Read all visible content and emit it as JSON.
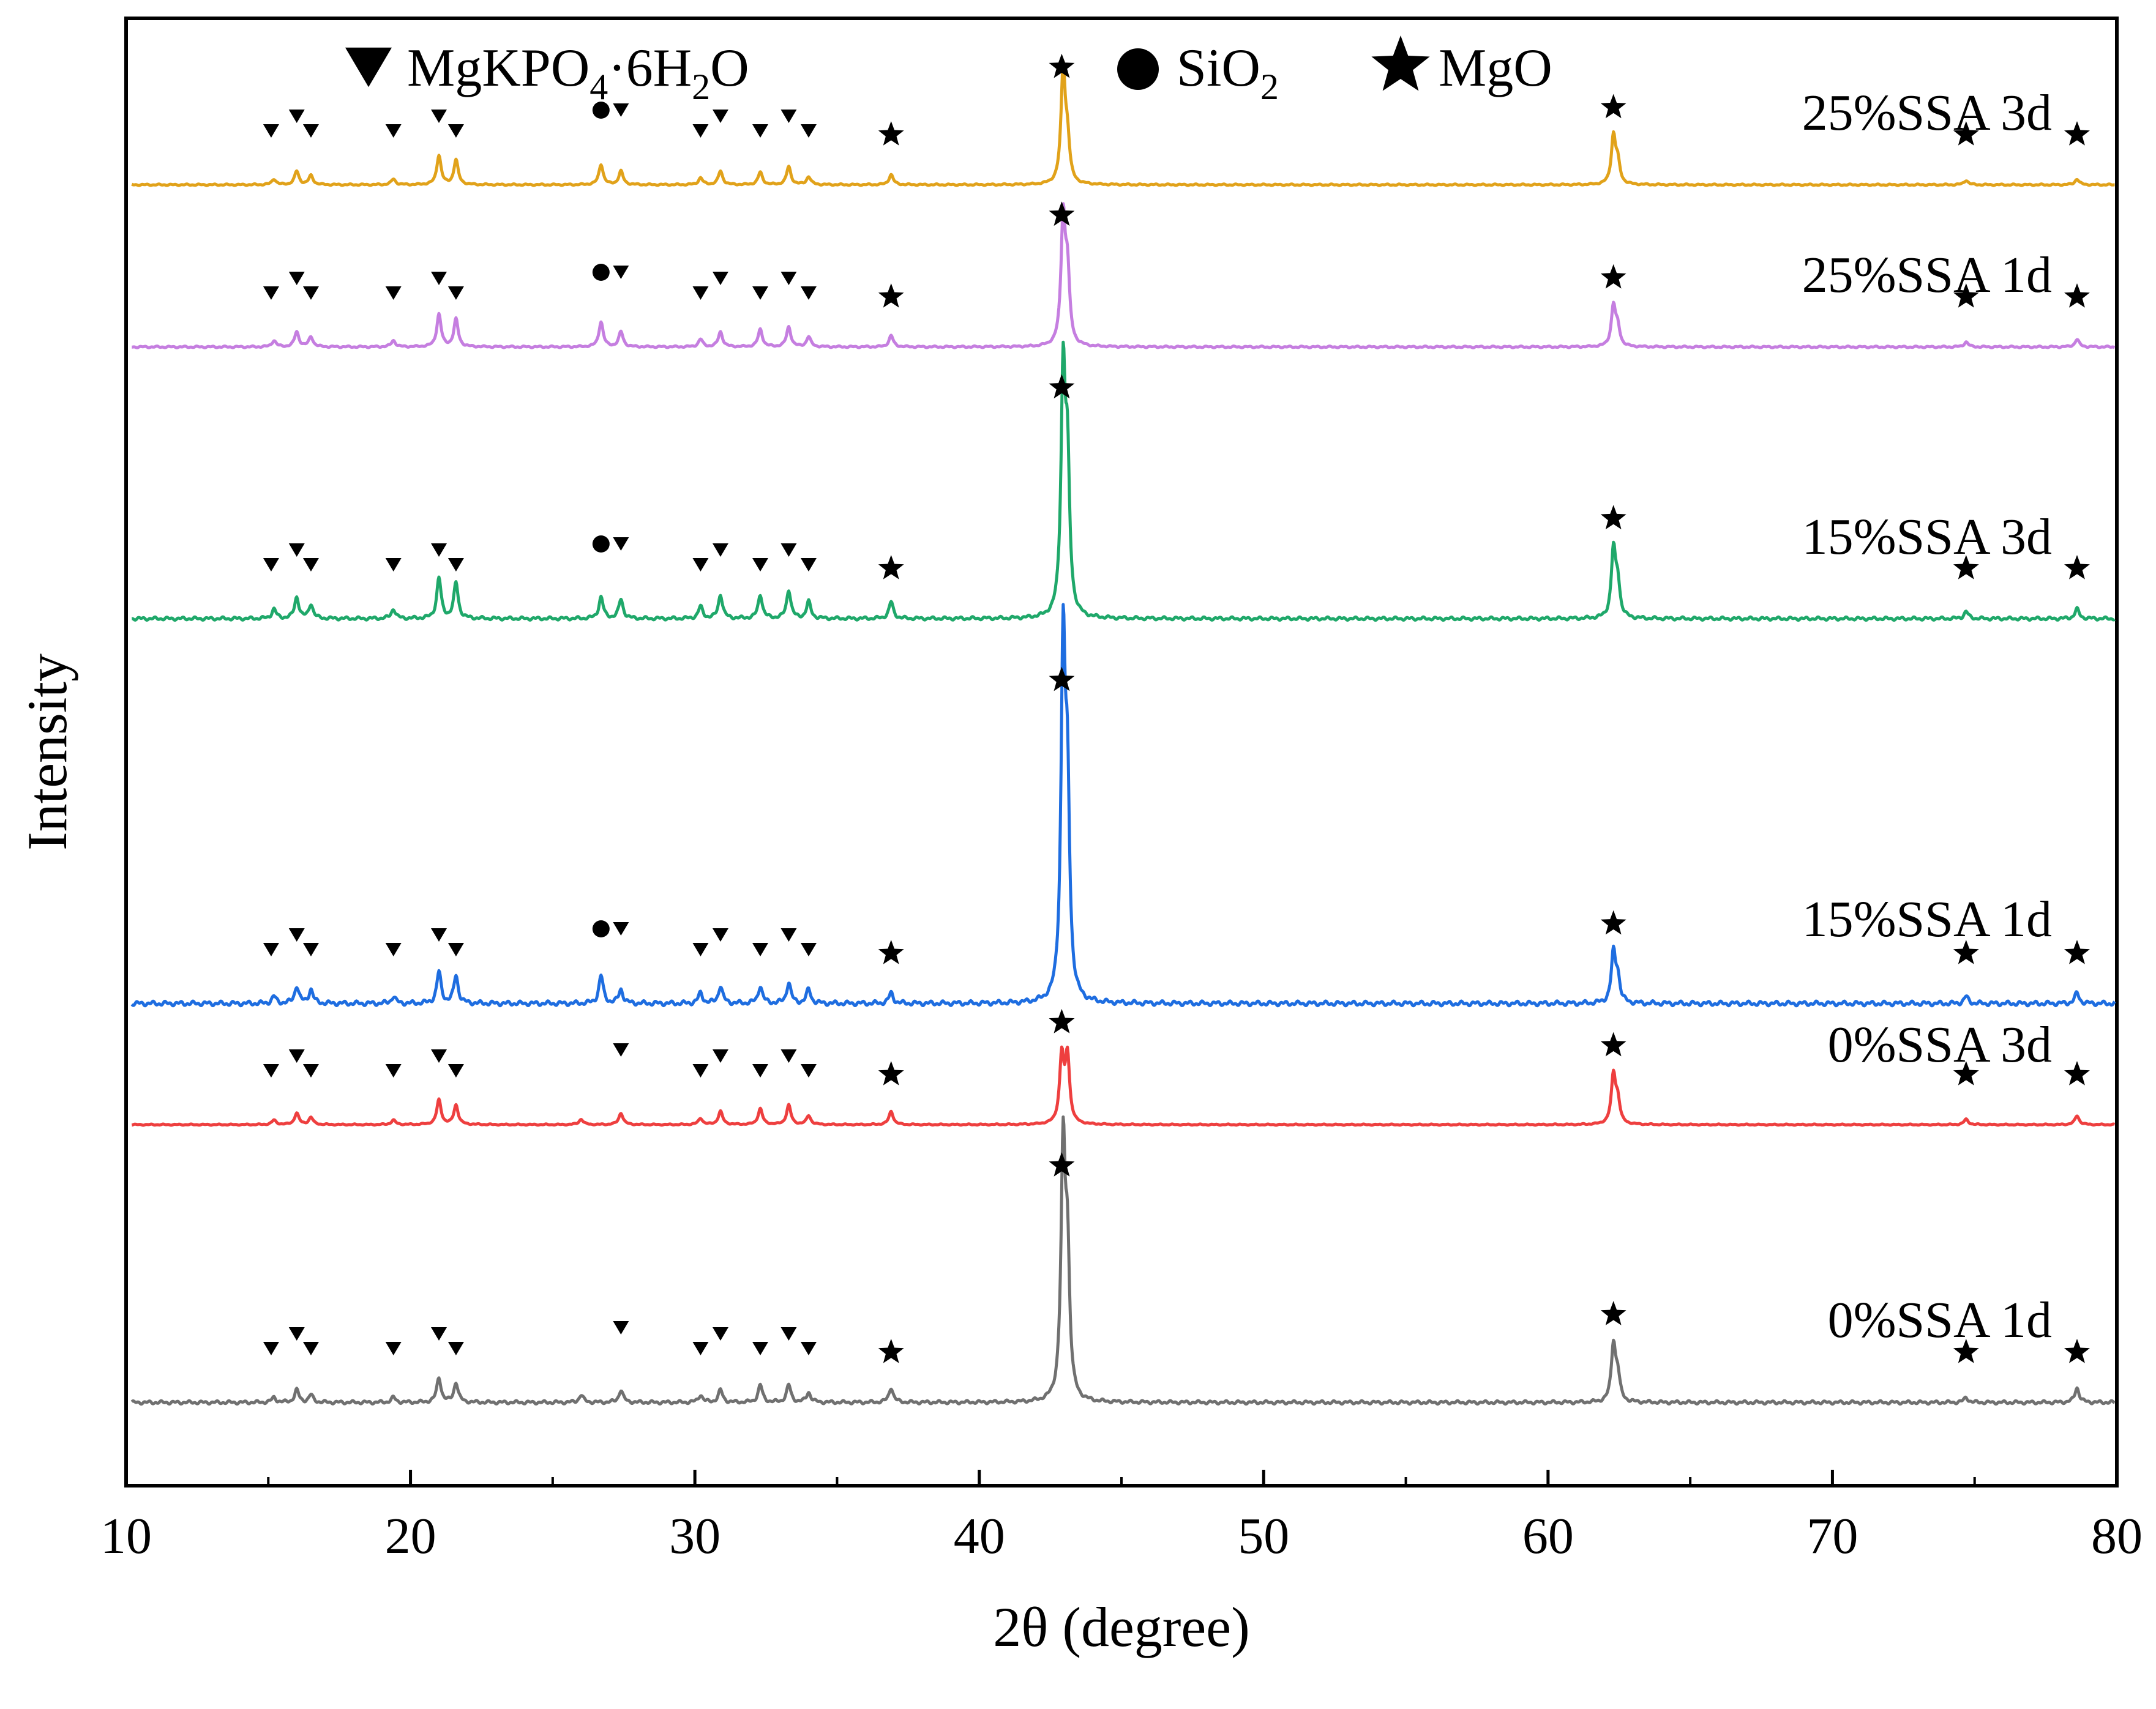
{
  "chart_data": {
    "type": "line",
    "title": "",
    "xlabel": "2θ (degree)",
    "ylabel": "Intensity",
    "xlim": [
      10,
      80
    ],
    "xticks": [
      10,
      20,
      30,
      40,
      50,
      60,
      70,
      80
    ],
    "y_ticks_shown": false,
    "grid": false,
    "legend": {
      "placement": "top",
      "entries": [
        {
          "marker": "triangle-down",
          "label": "MgKPO",
          "sub1": "4",
          "mid": "·6H",
          "sub2": "2",
          "tail": "O"
        },
        {
          "marker": "circle",
          "label": "SiO",
          "sub1": "2"
        },
        {
          "marker": "star",
          "label": "MgO"
        }
      ]
    },
    "phase_peaks": {
      "MgKPO4·6H2O": [
        15.1,
        16.0,
        16.5,
        19.4,
        21.0,
        21.6,
        27.4,
        30.2,
        30.9,
        32.3,
        33.3,
        34.0
      ],
      "SiO2": [
        26.7
      ],
      "MgO": [
        36.9,
        42.9,
        62.3,
        74.7,
        78.6
      ]
    },
    "series": [
      {
        "name": "25%SSA   3d",
        "color": "#E1A21A",
        "peaks": [
          [
            15.2,
            0.05
          ],
          [
            16.0,
            0.12
          ],
          [
            16.5,
            0.08
          ],
          [
            19.4,
            0.05
          ],
          [
            21.0,
            0.26
          ],
          [
            21.6,
            0.22
          ],
          [
            26.7,
            0.18
          ],
          [
            27.4,
            0.12
          ],
          [
            30.2,
            0.06
          ],
          [
            30.9,
            0.12
          ],
          [
            32.3,
            0.11
          ],
          [
            33.3,
            0.16
          ],
          [
            34.0,
            0.07
          ],
          [
            36.9,
            0.09
          ],
          [
            42.95,
            1.0
          ],
          [
            43.1,
            0.35
          ],
          [
            62.3,
            0.42
          ],
          [
            62.45,
            0.18
          ],
          [
            74.7,
            0.04
          ],
          [
            78.6,
            0.05
          ]
        ],
        "sid_marks": true
      },
      {
        "name": "25%SSA   1d",
        "color": "#C57EE0",
        "peaks": [
          [
            15.2,
            0.05
          ],
          [
            16.0,
            0.12
          ],
          [
            16.5,
            0.08
          ],
          [
            19.4,
            0.05
          ],
          [
            21.0,
            0.26
          ],
          [
            21.6,
            0.22
          ],
          [
            26.7,
            0.2
          ],
          [
            27.4,
            0.12
          ],
          [
            30.2,
            0.06
          ],
          [
            30.9,
            0.12
          ],
          [
            32.3,
            0.14
          ],
          [
            33.3,
            0.16
          ],
          [
            34.0,
            0.08
          ],
          [
            36.9,
            0.09
          ],
          [
            42.95,
            1.0
          ],
          [
            43.1,
            0.55
          ],
          [
            62.3,
            0.32
          ],
          [
            62.45,
            0.14
          ],
          [
            74.7,
            0.04
          ],
          [
            78.6,
            0.06
          ]
        ],
        "sid_marks": true
      },
      {
        "name": "15%SSA   3d",
        "color": "#1FA86A",
        "peaks": [
          [
            15.2,
            0.04
          ],
          [
            16.0,
            0.09
          ],
          [
            16.5,
            0.06
          ],
          [
            19.4,
            0.04
          ],
          [
            21.0,
            0.17
          ],
          [
            21.6,
            0.15
          ],
          [
            26.7,
            0.09
          ],
          [
            27.4,
            0.08
          ],
          [
            30.2,
            0.05
          ],
          [
            30.9,
            0.1
          ],
          [
            32.3,
            0.1
          ],
          [
            33.3,
            0.12
          ],
          [
            34.0,
            0.07
          ],
          [
            36.9,
            0.07
          ],
          [
            42.95,
            1.0
          ],
          [
            43.1,
            0.6
          ],
          [
            62.3,
            0.28
          ],
          [
            62.45,
            0.14
          ],
          [
            74.7,
            0.03
          ],
          [
            78.6,
            0.04
          ]
        ],
        "sid_marks": true
      },
      {
        "name": "15%SSA   1d",
        "color": "#1E6DE0",
        "peaks": [
          [
            15.2,
            0.02
          ],
          [
            16.0,
            0.05
          ],
          [
            16.5,
            0.04
          ],
          [
            19.4,
            0.02
          ],
          [
            21.0,
            0.09
          ],
          [
            21.6,
            0.08
          ],
          [
            26.7,
            0.08
          ],
          [
            27.4,
            0.04
          ],
          [
            30.2,
            0.03
          ],
          [
            30.9,
            0.05
          ],
          [
            32.3,
            0.05
          ],
          [
            33.3,
            0.06
          ],
          [
            34.0,
            0.04
          ],
          [
            36.9,
            0.03
          ],
          [
            42.95,
            1.0
          ],
          [
            43.1,
            0.55
          ],
          [
            62.3,
            0.14
          ],
          [
            62.45,
            0.07
          ],
          [
            74.7,
            0.02
          ],
          [
            78.6,
            0.03
          ]
        ],
        "sid_marks": true
      },
      {
        "name": "0%SSA   3d",
        "color": "#EE3F3F",
        "peaks": [
          [
            15.2,
            0.05
          ],
          [
            16.0,
            0.13
          ],
          [
            16.5,
            0.08
          ],
          [
            19.4,
            0.05
          ],
          [
            21.0,
            0.28
          ],
          [
            21.6,
            0.22
          ],
          [
            26.0,
            0.06
          ],
          [
            27.4,
            0.13
          ],
          [
            30.2,
            0.07
          ],
          [
            30.9,
            0.15
          ],
          [
            32.3,
            0.18
          ],
          [
            33.3,
            0.22
          ],
          [
            34.0,
            0.1
          ],
          [
            36.9,
            0.15
          ],
          [
            42.9,
            0.75
          ],
          [
            43.1,
            0.75
          ],
          [
            62.3,
            0.55
          ],
          [
            62.45,
            0.25
          ],
          [
            74.7,
            0.06
          ],
          [
            78.6,
            0.1
          ]
        ],
        "sid_marks": false
      },
      {
        "name": "0%SSA   1d",
        "color": "#707070",
        "peaks": [
          [
            15.2,
            0.02
          ],
          [
            16.0,
            0.05
          ],
          [
            16.5,
            0.03
          ],
          [
            19.4,
            0.02
          ],
          [
            21.0,
            0.1
          ],
          [
            21.6,
            0.08
          ],
          [
            26.0,
            0.03
          ],
          [
            27.4,
            0.05
          ],
          [
            30.2,
            0.03
          ],
          [
            30.9,
            0.05
          ],
          [
            32.3,
            0.07
          ],
          [
            33.3,
            0.07
          ],
          [
            34.0,
            0.04
          ],
          [
            36.9,
            0.06
          ],
          [
            42.95,
            1.0
          ],
          [
            43.1,
            0.55
          ],
          [
            62.3,
            0.23
          ],
          [
            62.45,
            0.1
          ],
          [
            74.7,
            0.02
          ],
          [
            78.6,
            0.06
          ]
        ],
        "sid_marks": false
      }
    ],
    "marker_color": "#000000"
  }
}
